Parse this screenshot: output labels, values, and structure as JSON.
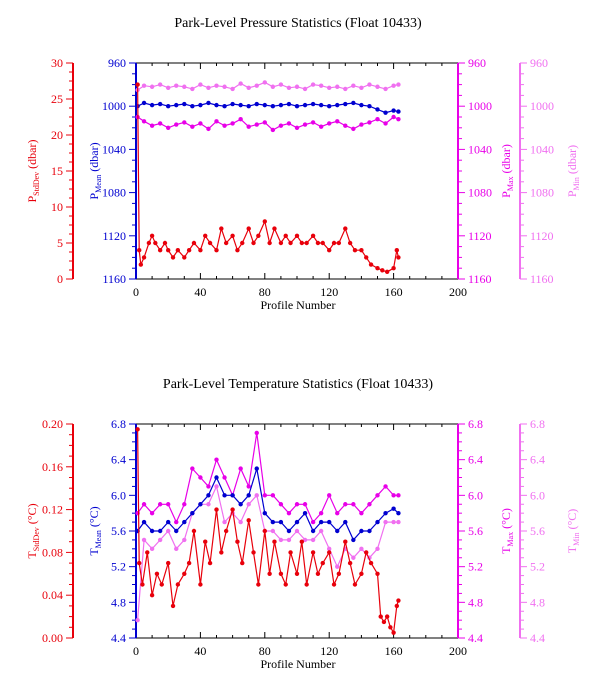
{
  "colors": {
    "stddev": "#e8000b",
    "mean": "#0000d0",
    "max": "#e800e8",
    "min": "#f070f0",
    "axis": "#000000"
  },
  "chart_data": [
    {
      "type": "line",
      "title": "Park-Level Pressure Statistics (Float 10433)",
      "xlabel": "Profile Number",
      "xlim": [
        0,
        200
      ],
      "xticks": [
        "0",
        "40",
        "80",
        "120",
        "160",
        "200"
      ],
      "axes": {
        "stddev": {
          "label_main": "P",
          "label_sub": "StdDev",
          "label_unit": " (dbar)",
          "lim": [
            0,
            30
          ],
          "ticks": [
            "0",
            "5",
            "10",
            "15",
            "20",
            "25",
            "30"
          ]
        },
        "mean": {
          "label_main": "P",
          "label_sub": "Mean",
          "label_unit": " (dbar)",
          "lim": [
            1160,
            960
          ],
          "ticks": [
            "1160",
            "1120",
            "1080",
            "1040",
            "1000",
            "960"
          ]
        },
        "max": {
          "label_main": "P",
          "label_sub": "Max",
          "label_unit": " (dbar)",
          "lim": [
            1160,
            960
          ],
          "ticks": [
            "1160",
            "1120",
            "1080",
            "1040",
            "1000",
            "960"
          ]
        },
        "min": {
          "label_main": "P",
          "label_sub": "Min",
          "label_unit": " (dbar)",
          "lim": [
            1160,
            960
          ],
          "ticks": [
            "1160",
            "1120",
            "1080",
            "1040",
            "1000",
            "960"
          ]
        }
      },
      "series": [
        {
          "key": "min",
          "x": [
            1,
            5,
            10,
            15,
            20,
            25,
            30,
            35,
            40,
            45,
            50,
            55,
            60,
            65,
            70,
            75,
            80,
            85,
            90,
            95,
            100,
            105,
            110,
            115,
            120,
            125,
            130,
            135,
            140,
            145,
            150,
            155,
            160,
            163
          ],
          "values": [
            985,
            981,
            982,
            980,
            983,
            981,
            982,
            984,
            980,
            983,
            981,
            982,
            984,
            979,
            983,
            981,
            978,
            982,
            980,
            983,
            982,
            984,
            980,
            981,
            983,
            982,
            984,
            981,
            983,
            980,
            982,
            984,
            981,
            980
          ]
        },
        {
          "key": "max",
          "x": [
            1,
            5,
            10,
            15,
            20,
            25,
            30,
            35,
            40,
            45,
            50,
            55,
            60,
            65,
            70,
            75,
            80,
            85,
            90,
            95,
            100,
            105,
            110,
            115,
            120,
            125,
            130,
            135,
            140,
            145,
            150,
            155,
            160,
            163
          ],
          "values": [
            1010,
            1014,
            1018,
            1016,
            1020,
            1017,
            1015,
            1019,
            1016,
            1021,
            1014,
            1018,
            1016,
            1012,
            1019,
            1017,
            1015,
            1022,
            1018,
            1016,
            1020,
            1017,
            1015,
            1019,
            1016,
            1014,
            1018,
            1021,
            1017,
            1015,
            1012,
            1016,
            1010,
            1012
          ]
        },
        {
          "key": "mean",
          "x": [
            1,
            5,
            10,
            15,
            20,
            25,
            30,
            35,
            40,
            45,
            50,
            55,
            60,
            65,
            70,
            75,
            80,
            85,
            90,
            95,
            100,
            105,
            110,
            115,
            120,
            125,
            130,
            135,
            140,
            145,
            150,
            155,
            160,
            163
          ],
          "values": [
            1000,
            997,
            999,
            998,
            1000,
            999,
            998,
            1000,
            999,
            997,
            999,
            1000,
            998,
            999,
            1000,
            998,
            999,
            1000,
            999,
            998,
            1000,
            999,
            998,
            999,
            1000,
            999,
            998,
            997,
            999,
            1000,
            1003,
            1006,
            1004,
            1005
          ]
        },
        {
          "key": "stddev",
          "x": [
            1,
            2,
            3,
            5,
            8,
            10,
            12,
            15,
            18,
            20,
            23,
            26,
            30,
            33,
            36,
            40,
            43,
            46,
            50,
            53,
            56,
            60,
            63,
            66,
            70,
            73,
            76,
            80,
            83,
            86,
            90,
            93,
            96,
            100,
            103,
            106,
            110,
            113,
            116,
            120,
            123,
            126,
            130,
            133,
            136,
            140,
            143,
            146,
            150,
            153,
            156,
            160,
            162,
            163
          ],
          "values": [
            27,
            4,
            2,
            3,
            5,
            6,
            5,
            4,
            5,
            4,
            3,
            4,
            3,
            4,
            5,
            4,
            6,
            5,
            4,
            7,
            5,
            6,
            4,
            5,
            7,
            5,
            6,
            8,
            5,
            7,
            5,
            6,
            5,
            6,
            5,
            5,
            6,
            5,
            5,
            4,
            5,
            5,
            7,
            5,
            4,
            4,
            3,
            2,
            1.5,
            1.2,
            1.0,
            1.5,
            4,
            3
          ]
        }
      ]
    },
    {
      "type": "line",
      "title": "Park-Level Temperature Statistics (Float 10433)",
      "xlabel": "Profile Number",
      "xlim": [
        0,
        200
      ],
      "xticks": [
        "0",
        "40",
        "80",
        "120",
        "160",
        "200"
      ],
      "axes": {
        "stddev": {
          "label_main": "T",
          "label_sub": "StdDev",
          "label_unit": " (°C)",
          "lim": [
            0,
            0.2
          ],
          "ticks": [
            "0.00",
            "0.04",
            "0.08",
            "0.12",
            "0.16",
            "0.20"
          ]
        },
        "mean": {
          "label_main": "T",
          "label_sub": "Mean",
          "label_unit": " (°C)",
          "lim": [
            4.4,
            6.8
          ],
          "ticks": [
            "4.4",
            "4.8",
            "5.2",
            "5.6",
            "6.0",
            "6.4",
            "6.8"
          ]
        },
        "max": {
          "label_main": "T",
          "label_sub": "Max",
          "label_unit": " (°C)",
          "lim": [
            4.4,
            6.8
          ],
          "ticks": [
            "4.4",
            "4.8",
            "5.2",
            "5.6",
            "6.0",
            "6.4",
            "6.8"
          ]
        },
        "min": {
          "label_main": "T",
          "label_sub": "Min",
          "label_unit": " (°C)",
          "lim": [
            4.4,
            6.8
          ],
          "ticks": [
            "4.4",
            "4.8",
            "5.2",
            "5.6",
            "6.0",
            "6.4",
            "6.8"
          ]
        }
      },
      "series": [
        {
          "key": "min",
          "x": [
            1,
            5,
            10,
            15,
            20,
            25,
            30,
            35,
            40,
            45,
            50,
            55,
            60,
            65,
            70,
            75,
            80,
            85,
            90,
            95,
            100,
            105,
            110,
            115,
            120,
            125,
            130,
            135,
            140,
            145,
            150,
            155,
            160,
            163
          ],
          "values": [
            4.6,
            5.5,
            5.4,
            5.5,
            5.6,
            5.4,
            5.5,
            5.8,
            5.9,
            5.9,
            6.1,
            5.7,
            5.8,
            5.7,
            5.9,
            6.0,
            5.6,
            5.6,
            5.5,
            5.5,
            5.6,
            5.5,
            5.5,
            5.6,
            5.4,
            5.2,
            5.4,
            5.3,
            5.4,
            5.3,
            5.4,
            5.7,
            5.7,
            5.7
          ]
        },
        {
          "key": "max",
          "x": [
            1,
            5,
            10,
            15,
            20,
            25,
            30,
            35,
            40,
            45,
            50,
            55,
            60,
            65,
            70,
            75,
            80,
            85,
            90,
            95,
            100,
            105,
            110,
            115,
            120,
            125,
            130,
            135,
            140,
            145,
            150,
            155,
            160,
            163
          ],
          "values": [
            5.8,
            5.9,
            5.8,
            5.9,
            5.9,
            5.7,
            5.9,
            6.3,
            6.2,
            6.1,
            6.4,
            6.2,
            6.0,
            6.3,
            6.1,
            6.7,
            6.0,
            6.0,
            5.9,
            5.8,
            5.9,
            5.9,
            5.7,
            5.8,
            6.0,
            5.8,
            5.9,
            5.9,
            5.8,
            5.9,
            6.0,
            6.1,
            6.0,
            6.0
          ]
        },
        {
          "key": "mean",
          "x": [
            1,
            5,
            10,
            15,
            20,
            25,
            30,
            35,
            40,
            45,
            50,
            55,
            60,
            65,
            70,
            75,
            80,
            85,
            90,
            95,
            100,
            105,
            110,
            115,
            120,
            125,
            130,
            135,
            140,
            145,
            150,
            155,
            160,
            163
          ],
          "values": [
            5.6,
            5.7,
            5.6,
            5.6,
            5.7,
            5.6,
            5.7,
            5.8,
            5.9,
            6.0,
            6.2,
            6.0,
            6.0,
            5.9,
            6.0,
            6.3,
            5.8,
            5.7,
            5.7,
            5.6,
            5.7,
            5.8,
            5.6,
            5.7,
            5.7,
            5.6,
            5.7,
            5.5,
            5.6,
            5.6,
            5.7,
            5.8,
            5.85,
            5.8
          ]
        },
        {
          "key": "stddev",
          "x": [
            1,
            2,
            4,
            7,
            10,
            13,
            16,
            20,
            23,
            26,
            30,
            33,
            36,
            40,
            43,
            46,
            50,
            53,
            56,
            60,
            63,
            66,
            70,
            73,
            76,
            80,
            83,
            86,
            90,
            93,
            96,
            100,
            103,
            106,
            110,
            113,
            116,
            120,
            123,
            126,
            130,
            133,
            136,
            140,
            143,
            146,
            150,
            152,
            154,
            156,
            158,
            160,
            162,
            163
          ],
          "values": [
            0.195,
            0.07,
            0.05,
            0.08,
            0.04,
            0.06,
            0.05,
            0.07,
            0.03,
            0.05,
            0.06,
            0.07,
            0.1,
            0.05,
            0.09,
            0.07,
            0.12,
            0.08,
            0.1,
            0.12,
            0.09,
            0.07,
            0.11,
            0.08,
            0.05,
            0.1,
            0.06,
            0.09,
            0.06,
            0.05,
            0.08,
            0.06,
            0.09,
            0.05,
            0.08,
            0.06,
            0.07,
            0.08,
            0.05,
            0.06,
            0.09,
            0.07,
            0.05,
            0.06,
            0.08,
            0.07,
            0.06,
            0.02,
            0.015,
            0.02,
            0.01,
            0.005,
            0.03,
            0.035
          ]
        }
      ]
    }
  ]
}
